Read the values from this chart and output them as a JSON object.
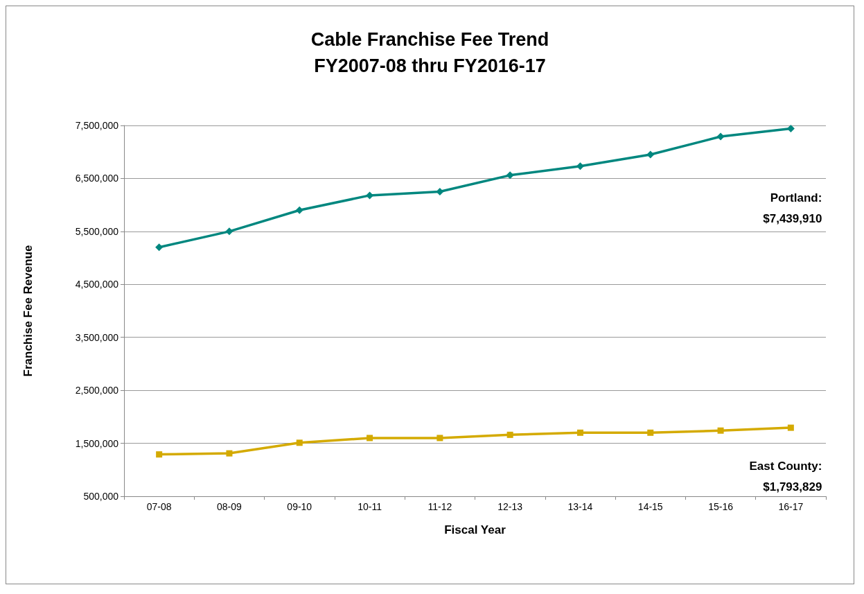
{
  "chart_data": {
    "type": "line",
    "title": "Cable Franchise Fee Trend\nFY2007-08 thru FY2016-17",
    "xlabel": "Fiscal Year",
    "ylabel": "Franchise Fee Revenue",
    "categories": [
      "07-08",
      "08-09",
      "09-10",
      "10-11",
      "11-12",
      "12-13",
      "13-14",
      "14-15",
      "15-16",
      "16-17"
    ],
    "series": [
      {
        "color": "#00877f",
        "marker": "diamond",
        "values": [
          5200000,
          5500000,
          5900000,
          6180000,
          6250000,
          6560000,
          6730000,
          6950000,
          7290000,
          7439910
        ]
      },
      {
        "color": "#d4aa00",
        "marker": "square",
        "values": [
          1290000,
          1310000,
          1510000,
          1600000,
          1600000,
          1660000,
          1700000,
          1700000,
          1740000,
          1793829
        ]
      }
    ],
    "annotations": [
      "Portland:\n$7,439,910",
      "East County:\n$1,793,829"
    ],
    "ylim": [
      500000,
      7500000
    ],
    "yticks": [
      {
        "value": 500000,
        "label": "500,000"
      },
      {
        "value": 1500000,
        "label": "1,500,000"
      },
      {
        "value": 2500000,
        "label": "2,500,000"
      },
      {
        "value": 3500000,
        "label": "3,500,000"
      },
      {
        "value": 4500000,
        "label": "4,500,000"
      },
      {
        "value": 5500000,
        "label": "5,500,000"
      },
      {
        "value": 6500000,
        "label": "6,500,000"
      },
      {
        "value": 7500000,
        "label": "7,500,000"
      }
    ],
    "grid": "y"
  }
}
